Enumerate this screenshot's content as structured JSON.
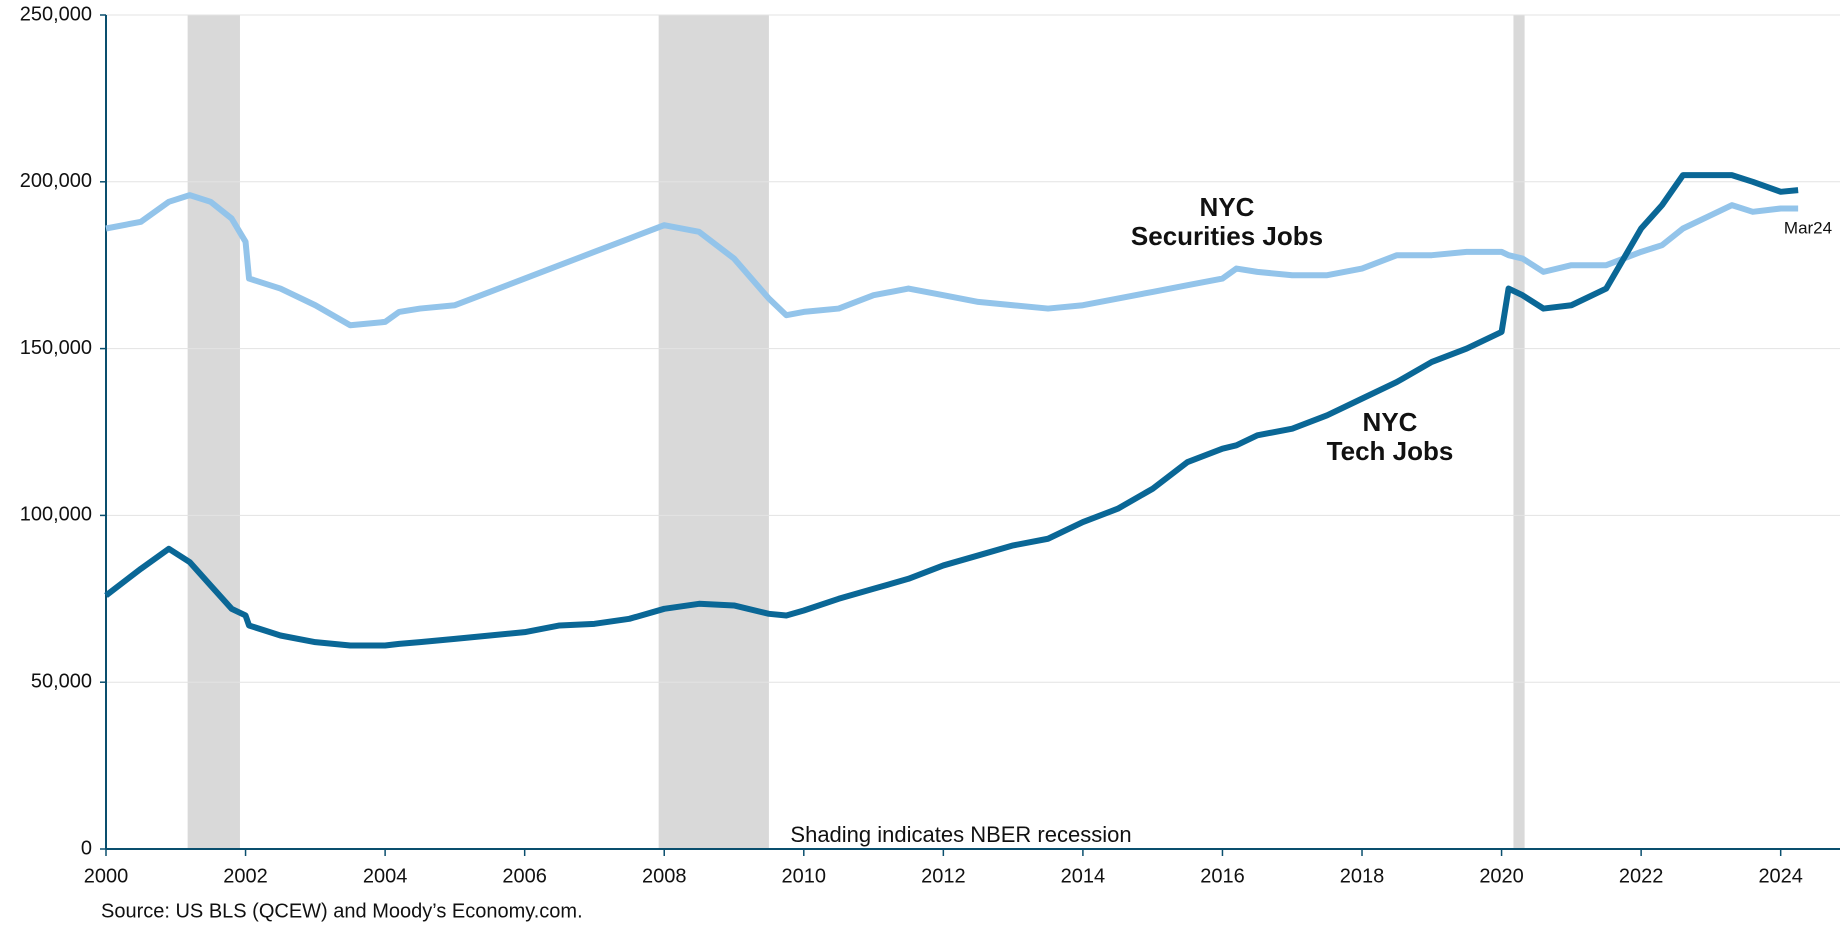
{
  "chart_data": {
    "type": "line",
    "x": [
      2000,
      2000.5,
      2000.9,
      2001.2,
      2001.5,
      2001.8,
      2002,
      2002.05,
      2002.5,
      2003,
      2003.5,
      2004,
      2004.2,
      2004.5,
      2005,
      2005.5,
      2006,
      2006.5,
      2007,
      2007.5,
      2008,
      2008.5,
      2009,
      2009.5,
      2009.75,
      2010,
      2010.5,
      2011,
      2011.5,
      2012,
      2012.5,
      2013,
      2013.5,
      2014,
      2014.5,
      2015,
      2015.5,
      2016,
      2016.2,
      2016.5,
      2017,
      2017.5,
      2018,
      2018.5,
      2019,
      2019.5,
      2020,
      2020.1,
      2020.3,
      2020.6,
      2021,
      2021.5,
      2022,
      2022.3,
      2022.6,
      2023,
      2023.3,
      2023.6,
      2024,
      2024.25
    ],
    "series": [
      {
        "name": "NYC Securities Jobs",
        "color": "#93c4ea",
        "values": [
          186000,
          188000,
          194000,
          196000,
          194000,
          189000,
          182000,
          171000,
          168000,
          163000,
          157000,
          158000,
          161000,
          162000,
          163000,
          167000,
          171000,
          175000,
          179000,
          183000,
          187000,
          185000,
          177000,
          165000,
          160000,
          161000,
          162000,
          166000,
          168000,
          166000,
          164000,
          163000,
          162000,
          163000,
          165000,
          167000,
          169000,
          171000,
          174000,
          173000,
          172000,
          172000,
          174000,
          178000,
          178000,
          179000,
          179000,
          178000,
          177000,
          173000,
          175000,
          175000,
          179000,
          181000,
          186000,
          190000,
          193000,
          191000,
          192000,
          192000
        ]
      },
      {
        "name": "NYC Tech Jobs",
        "color": "#0a6796",
        "values": [
          76000,
          84000,
          90000,
          86000,
          79000,
          72000,
          70000,
          67000,
          64000,
          62000,
          61000,
          61000,
          61500,
          62000,
          63000,
          64000,
          65000,
          67000,
          67500,
          69000,
          72000,
          73500,
          73000,
          70500,
          70000,
          71500,
          75000,
          78000,
          81000,
          85000,
          88000,
          91000,
          93000,
          98000,
          102000,
          108000,
          116000,
          120000,
          121000,
          124000,
          126000,
          130000,
          135000,
          140000,
          146000,
          150000,
          155000,
          168000,
          166000,
          162000,
          163000,
          168000,
          186000,
          193000,
          202000,
          202000,
          202000,
          200000,
          197000,
          197500
        ]
      }
    ],
    "recessions": [
      [
        2001.17,
        2001.92
      ],
      [
        2007.92,
        2009.5
      ],
      [
        2020.17,
        2020.33
      ]
    ],
    "xlim": [
      2000,
      2024.85
    ],
    "xticks": [
      2000,
      2002,
      2004,
      2006,
      2008,
      2010,
      2012,
      2014,
      2016,
      2018,
      2020,
      2022,
      2024
    ],
    "ylim": [
      0,
      250000
    ],
    "yticks": [
      0,
      {
        "value": 50000,
        "label": "50,000"
      },
      {
        "value": 100000,
        "label": "100,000"
      },
      {
        "value": 150000,
        "label": "150,000"
      },
      {
        "value": 200000,
        "label": "200,000"
      },
      {
        "value": 250000,
        "label": "250,000"
      }
    ],
    "grid": true,
    "annotations": {
      "securities": [
        "NYC",
        "Securities Jobs"
      ],
      "tech": [
        "NYC",
        "Tech Jobs"
      ],
      "end": "Mar24",
      "shading": "Shading indicates NBER recession"
    },
    "source": "Source: US BLS (QCEW) and Moody’s Economy.com."
  }
}
